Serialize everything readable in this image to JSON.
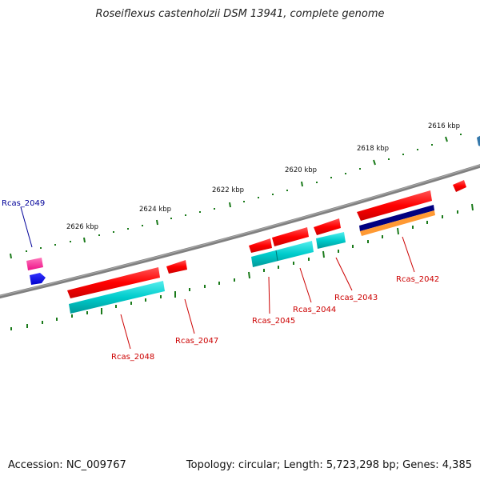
{
  "title": "Roseiflexus castenholzii DSM 13941, complete genome",
  "footer": {
    "accession": "Accession: NC_009767",
    "topology": "Topology: circular; Length: 5,723,298 bp; Genes: 4,385"
  },
  "colors": {
    "backbone": "#8a8a8a",
    "tick": "#1a7a1a",
    "gene": "#ff0000",
    "cds": "#00cccc",
    "pink": "#ff3399",
    "blue": "#0000ff",
    "navy": "#000080",
    "orange": "#ff9933",
    "label_red": "#cc0000",
    "label_blue": "#000099"
  },
  "scale_labels": [
    "2616 kbp",
    "2618 kbp",
    "2620 kbp",
    "2622 kbp",
    "2624 kbp",
    "2626 kbp"
  ],
  "gene_labels": [
    "Rcas_2049",
    "Rcas_2048",
    "Rcas_2047",
    "Rcas_2045",
    "Rcas_2044",
    "Rcas_2043",
    "Rcas_2042"
  ]
}
